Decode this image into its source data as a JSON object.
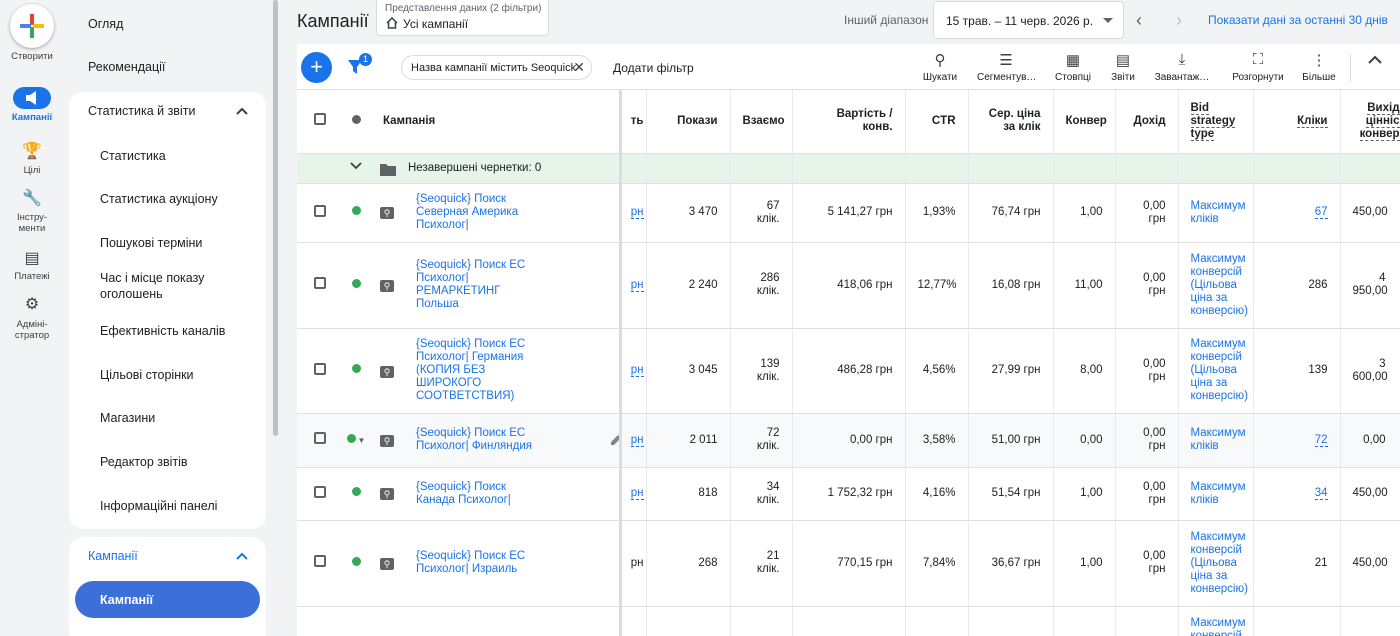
{
  "rail": {
    "create_label": "Створити",
    "campaigns_label": "Кампанії",
    "goals_label": "Цілі",
    "tools_label": "Інстру-\nменти",
    "billing_label": "Платежі",
    "admin_label": "Адміні-\nстратор"
  },
  "nav": {
    "overview": "Огляд",
    "recommendations": "Рекомендації",
    "stats_section": "Статистика й звіти",
    "stats_items": [
      "Статистика",
      "Статистика аукціону",
      "Пошукові терміни",
      "Час і місце показу оголошень",
      "Ефективність каналів",
      "Цільові сторінки",
      "Магазини",
      "Редактор звітів",
      "Інформаційні панелі"
    ],
    "campaigns_section": "Кампанії",
    "campaigns_item": "Кампанії"
  },
  "header": {
    "title": "Кампанії",
    "view_caption": "Представлення даних (2 фільтри)",
    "view_value": "Усі кампанії",
    "range_label": "Інший діапазон",
    "date_range": "15 трав. – 11 черв. 2026 р.",
    "show_last_30": "Показати дані за останні 30 днів"
  },
  "toolbar": {
    "filter_badge": "1",
    "filter_chip": "Назва кампанії містить Seoquick",
    "add_filter": "Додати фільтр",
    "tools": [
      "Шукати",
      "Сегментув…",
      "Стовпці",
      "Звіти",
      "Завантаж…",
      "Розгорнути",
      "Більше"
    ]
  },
  "table": {
    "headers": {
      "campaign": "Кампанія",
      "cost_partial": "ть",
      "impressions": "Покази",
      "interactions": "Взаємо",
      "cost_conv": "Вартість / конв.",
      "ctr": "CTR",
      "avg_cpc": "Сер. ціна за клік",
      "conv": "Конвер",
      "revenue": "Дохід",
      "bid_strategy": "Bid strategy type",
      "clicks": "Кліки",
      "conv_value": "Вихід цінніс конвер"
    },
    "draft_label": "Незавершені чернетки: 0",
    "rows": [
      {
        "name": "{Seoquick} Поиск Северная Америка Психолог|",
        "cost": "рн",
        "impressions": "3 470",
        "interactions": "67 клік.",
        "cost_conv": "5 141,27 грн",
        "ctr": "1,93%",
        "avg_cpc": "76,74 грн",
        "conv": "1,00",
        "revenue": "0,00 грн",
        "bid": "Максимум кліків",
        "clicks": "67",
        "conv_value": "450,00"
      },
      {
        "name": "{Seoquick} Поиск ЕС Психолог| РЕМАРКЕТИНГ Польша",
        "cost": "рн",
        "impressions": "2 240",
        "interactions": "286 клік.",
        "cost_conv": "418,06 грн",
        "ctr": "12,77%",
        "avg_cpc": "16,08 грн",
        "conv": "11,00",
        "revenue": "0,00 грн",
        "bid": "Максимум конверсій (Цільова ціна за конверсію)",
        "clicks": "286",
        "conv_value": "4 950,00"
      },
      {
        "name": "{Seoquick} Поиск ЕС Психолог| Германия (КОПИЯ БЕЗ ШИРОКОГО СООТВЕТСТВИЯ)",
        "cost": "рн",
        "impressions": "3 045",
        "interactions": "139 клік.",
        "cost_conv": "486,28 грн",
        "ctr": "4,56%",
        "avg_cpc": "27,99 грн",
        "conv": "8,00",
        "revenue": "0,00 грн",
        "bid": "Максимум конверсій (Цільова ціна за конверсію)",
        "clicks": "139",
        "conv_value": "3 600,00"
      },
      {
        "name": "{Seoquick} Поиск ЕС Психолог| Финляндия",
        "cost": "рн",
        "impressions": "2 011",
        "interactions": "72 клік.",
        "cost_conv": "0,00 грн",
        "ctr": "3,58%",
        "avg_cpc": "51,00 грн",
        "conv": "0,00",
        "revenue": "0,00 грн",
        "bid": "Максимум кліків",
        "clicks": "72",
        "conv_value": "0,00"
      },
      {
        "name": "{Seoquick} Поиск Канада Психолог|",
        "cost": "рн",
        "impressions": "818",
        "interactions": "34 клік.",
        "cost_conv": "1 752,32 грн",
        "ctr": "4,16%",
        "avg_cpc": "51,54 грн",
        "conv": "1,00",
        "revenue": "0,00 грн",
        "bid": "Максимум кліків",
        "clicks": "34",
        "conv_value": "450,00"
      },
      {
        "name": "{Seoquick} Поиск ЕС Психолог| Израиль",
        "cost": "рн",
        "impressions": "268",
        "interactions": "21 клік.",
        "cost_conv": "770,15 грн",
        "ctr": "7,84%",
        "avg_cpc": "36,67 грн",
        "conv": "1,00",
        "revenue": "0,00 грн",
        "bid": "Максимум конверсій (Цільова ціна за конверсію)",
        "clicks": "21",
        "conv_value": "450,00"
      },
      {
        "bid_partial": "Максимум конверсій"
      }
    ]
  },
  "colors": {
    "accent": "#1a73e8",
    "enabled": "#34a853",
    "draft_bg": "#e6f4ea"
  }
}
